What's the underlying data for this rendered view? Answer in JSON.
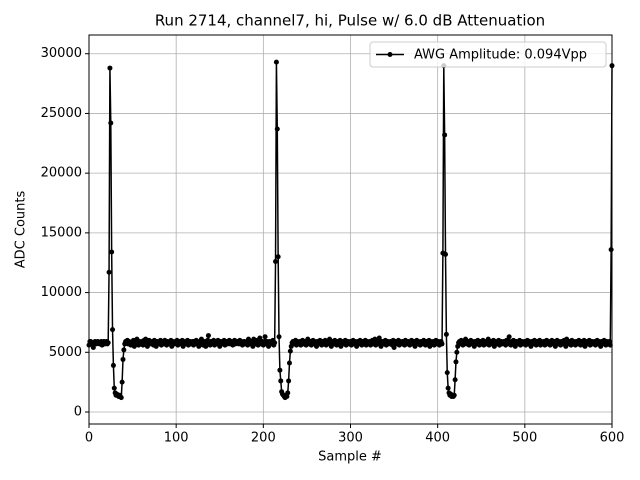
{
  "chart_data": {
    "type": "line",
    "title": "Run 2714, channel7, hi, Pulse w/ 6.0 dB Attenuation",
    "xlabel": "Sample #",
    "ylabel": "ADC Counts",
    "xlim": [
      0,
      600
    ],
    "ylim": [
      -1005,
      31569
    ],
    "xticks": [
      0,
      100,
      200,
      300,
      400,
      500,
      600
    ],
    "yticks": [
      0,
      5000,
      10000,
      15000,
      20000,
      25000,
      30000
    ],
    "grid": true,
    "legend": "upper right",
    "x": [
      0,
      1,
      2,
      3,
      4,
      5,
      6,
      7,
      8,
      9,
      10,
      11,
      12,
      13,
      14,
      15,
      16,
      17,
      18,
      19,
      20,
      21,
      22,
      23,
      24,
      25,
      26,
      27,
      28,
      29,
      30,
      31,
      32,
      33,
      34,
      35,
      36,
      37,
      38,
      39,
      40,
      41,
      42,
      43,
      44,
      45,
      46,
      47,
      48,
      49,
      50,
      51,
      52,
      53,
      54,
      55,
      56,
      57,
      58,
      59,
      60,
      61,
      62,
      63,
      64,
      65,
      66,
      67,
      68,
      69,
      70,
      71,
      72,
      73,
      74,
      75,
      76,
      77,
      78,
      79,
      80,
      81,
      82,
      83,
      84,
      85,
      86,
      87,
      88,
      89,
      90,
      91,
      92,
      93,
      94,
      95,
      96,
      97,
      98,
      99,
      100,
      101,
      102,
      103,
      104,
      105,
      106,
      107,
      108,
      109,
      110,
      111,
      112,
      113,
      114,
      115,
      116,
      117,
      118,
      119,
      120,
      121,
      122,
      123,
      124,
      125,
      126,
      127,
      128,
      129,
      130,
      131,
      132,
      133,
      134,
      135,
      136,
      137,
      138,
      139,
      140,
      141,
      142,
      143,
      144,
      145,
      146,
      147,
      148,
      149,
      150,
      151,
      152,
      153,
      154,
      155,
      156,
      157,
      158,
      159,
      160,
      161,
      162,
      163,
      164,
      165,
      166,
      167,
      168,
      169,
      170,
      171,
      172,
      173,
      174,
      175,
      176,
      177,
      178,
      179,
      180,
      181,
      182,
      183,
      184,
      185,
      186,
      187,
      188,
      189,
      190,
      191,
      192,
      193,
      194,
      195,
      196,
      197,
      198,
      199,
      200,
      201,
      202,
      203,
      204,
      205,
      206,
      207,
      208,
      209,
      210,
      211,
      212,
      213,
      214,
      215,
      216,
      217,
      218,
      219,
      220,
      221,
      222,
      223,
      224,
      225,
      226,
      227,
      228,
      229,
      230,
      231,
      232,
      233,
      234,
      235,
      236,
      237,
      238,
      239,
      240,
      241,
      242,
      243,
      244,
      245,
      246,
      247,
      248,
      249,
      250,
      251,
      252,
      253,
      254,
      255,
      256,
      257,
      258,
      259,
      260,
      261,
      262,
      263,
      264,
      265,
      266,
      267,
      268,
      269,
      270,
      271,
      272,
      273,
      274,
      275,
      276,
      277,
      278,
      279,
      280,
      281,
      282,
      283,
      284,
      285,
      286,
      287,
      288,
      289,
      290,
      291,
      292,
      293,
      294,
      295,
      296,
      297,
      298,
      299,
      300,
      301,
      302,
      303,
      304,
      305,
      306,
      307,
      308,
      309,
      310,
      311,
      312,
      313,
      314,
      315,
      316,
      317,
      318,
      319,
      320,
      321,
      322,
      323,
      324,
      325,
      326,
      327,
      328,
      329,
      330,
      331,
      332,
      333,
      334,
      335,
      336,
      337,
      338,
      339,
      340,
      341,
      342,
      343,
      344,
      345,
      346,
      347,
      348,
      349,
      350,
      351,
      352,
      353,
      354,
      355,
      356,
      357,
      358,
      359,
      360,
      361,
      362,
      363,
      364,
      365,
      366,
      367,
      368,
      369,
      370,
      371,
      372,
      373,
      374,
      375,
      376,
      377,
      378,
      379,
      380,
      381,
      382,
      383,
      384,
      385,
      386,
      387,
      388,
      389,
      390,
      391,
      392,
      393,
      394,
      395,
      396,
      397,
      398,
      399,
      400,
      401,
      402,
      403,
      404,
      405,
      406,
      407,
      408,
      409,
      410,
      411,
      412,
      413,
      414,
      415,
      416,
      417,
      418,
      419,
      420,
      421,
      422,
      423,
      424,
      425,
      426,
      427,
      428,
      429,
      430,
      431,
      432,
      433,
      434,
      435,
      436,
      437,
      438,
      439,
      440,
      441,
      442,
      443,
      444,
      445,
      446,
      447,
      448,
      449,
      450,
      451,
      452,
      453,
      454,
      455,
      456,
      457,
      458,
      459,
      460,
      461,
      462,
      463,
      464,
      465,
      466,
      467,
      468,
      469,
      470,
      471,
      472,
      473,
      474,
      475,
      476,
      477,
      478,
      479,
      480,
      481,
      482,
      483,
      484,
      485,
      486,
      487,
      488,
      489,
      490,
      491,
      492,
      493,
      494,
      495,
      496,
      497,
      498,
      499,
      500,
      501,
      502,
      503,
      504,
      505,
      506,
      507,
      508,
      509,
      510,
      511,
      512,
      513,
      514,
      515,
      516,
      517,
      518,
      519,
      520,
      521,
      522,
      523,
      524,
      525,
      526,
      527,
      528,
      529,
      530,
      531,
      532,
      533,
      534,
      535,
      536,
      537,
      538,
      539,
      540,
      541,
      542,
      543,
      544,
      545,
      546,
      547,
      548,
      549,
      550,
      551,
      552,
      553,
      554,
      555,
      556,
      557,
      558,
      559,
      560,
      561,
      562,
      563,
      564,
      565,
      566,
      567,
      568,
      569,
      570,
      571,
      572,
      573,
      574,
      575,
      576,
      577,
      578,
      579,
      580,
      581,
      582,
      583,
      584,
      585,
      586,
      587,
      588,
      589,
      590,
      591,
      592,
      593,
      594,
      595,
      596,
      597,
      598,
      599,
      600
    ],
    "series": [
      {
        "name": "AWG Amplitude: 0.094Vpp",
        "color": "#000000",
        "values": [
          5600,
          5900,
          5900,
          5800,
          5700,
          5400,
          5800,
          5900,
          5700,
          5800,
          5900,
          5800,
          5700,
          5800,
          5900,
          5600,
          5800,
          5900,
          5700,
          5800,
          5900,
          5700,
          5800,
          11700,
          28800,
          24200,
          13400,
          6900,
          3900,
          2000,
          1600,
          1400,
          1500,
          1400,
          1300,
          1400,
          1300,
          1200,
          2500,
          4400,
          5200,
          5700,
          5900,
          5800,
          6000,
          5700,
          5900,
          5800,
          5600,
          5800,
          5900,
          6000,
          5500,
          5800,
          5700,
          6100,
          5800,
          5600,
          5900,
          5700,
          5800,
          5900,
          5600,
          6000,
          5700,
          6100,
          5800,
          5500,
          5800,
          6000,
          5900,
          5700,
          5800,
          5900,
          5600,
          6000,
          5800,
          5500,
          5900,
          5800,
          5700,
          5900,
          6000,
          5600,
          5800,
          5900,
          5700,
          6000,
          5800,
          5600,
          5900,
          5800,
          5700,
          5800,
          6000,
          5500,
          5900,
          5800,
          5700,
          5900,
          5800,
          6000,
          5600,
          5800,
          5900,
          5700,
          5800,
          6000,
          5500,
          5900,
          5800,
          5700,
          5900,
          6000,
          5600,
          5800,
          5900,
          5700,
          5800,
          5900,
          5600,
          5900,
          5800,
          6000,
          5700,
          5800,
          5500,
          5900,
          5700,
          6100,
          5800,
          5600,
          5900,
          5700,
          5500,
          5800,
          6000,
          6400,
          5800,
          5600,
          5900,
          5700,
          5800,
          6000,
          5600,
          5800,
          5900,
          5700,
          6000,
          5800,
          5500,
          5900,
          5800,
          5700,
          5900,
          6000,
          5600,
          5800,
          5900,
          5700,
          5800,
          6000,
          5700,
          5900,
          5800,
          5600,
          5900,
          6000,
          5700,
          5800,
          5900,
          5800,
          5700,
          6000,
          5800,
          5900,
          5600,
          5800,
          5900,
          5700,
          5800,
          5900,
          5600,
          6100,
          5800,
          5700,
          5900,
          5800,
          5500,
          6100,
          5800,
          5700,
          5900,
          6000,
          5600,
          5800,
          6200,
          5700,
          5800,
          5900,
          5600,
          5800,
          6300,
          5700,
          5900,
          5800,
          5500,
          5900,
          5800,
          5700,
          5900,
          6000,
          5600,
          5800,
          12600,
          29300,
          23700,
          13000,
          6300,
          3500,
          2600,
          1700,
          1500,
          1400,
          1300,
          1200,
          1400,
          1300,
          1600,
          2600,
          4100,
          5100,
          5500,
          5800,
          5900,
          5700,
          5800,
          6000,
          5600,
          5900,
          5800,
          5700,
          5900,
          5600,
          5800,
          6000,
          5700,
          5900,
          5800,
          5600,
          5900,
          6100,
          5700,
          5800,
          5900,
          5600,
          5800,
          6000,
          5700,
          5900,
          5800,
          5500,
          5900,
          5800,
          5700,
          6000,
          5800,
          5600,
          5900,
          5700,
          5800,
          6000,
          5600,
          5900,
          5800,
          5700,
          6100,
          5800,
          5500,
          5900,
          5800,
          5700,
          6000,
          5800,
          5600,
          5900,
          5700,
          5800,
          6000,
          5500,
          5900,
          5800,
          5700,
          5900,
          6000,
          5600,
          5800,
          5900,
          5700,
          5800,
          5900,
          5600,
          5800,
          6000,
          5700,
          5900,
          5800,
          5500,
          5900,
          5800,
          5700,
          6000,
          5800,
          5600,
          5900,
          5700,
          5800,
          6000,
          5600,
          5900,
          5800,
          5700,
          5900,
          5600,
          5800,
          6000,
          5700,
          5900,
          6100,
          5600,
          5900,
          5800,
          5700,
          6200,
          5800,
          5500,
          5900,
          5800,
          5700,
          5900,
          6000,
          5600,
          5800,
          5900,
          5700,
          5800,
          5900,
          5800,
          5600,
          6000,
          5400,
          5800,
          5900,
          5700,
          5800,
          6000,
          5600,
          5900,
          5800,
          5700,
          5900,
          5800,
          5600,
          6000,
          5800,
          5700,
          5900,
          5800,
          5600,
          5900,
          6000,
          5700,
          5800,
          5900,
          5500,
          5800,
          6000,
          5700,
          5900,
          5800,
          5600,
          5900,
          5800,
          5700,
          6000,
          5800,
          5600,
          5900,
          5700,
          5800,
          6000,
          5500,
          5900,
          5800,
          5700,
          5900,
          5600,
          5800,
          6000,
          5700,
          5800,
          5900,
          5600,
          5800,
          5900,
          5700,
          13300,
          29000,
          23200,
          13200,
          6500,
          3300,
          2000,
          1600,
          1400,
          1500,
          1300,
          1400,
          1300,
          1400,
          2700,
          4200,
          5000,
          5500,
          5800,
          5900,
          5700,
          6000,
          5800,
          5600,
          5900,
          5800,
          6100,
          5700,
          5800,
          5900,
          5600,
          5800,
          6000,
          5700,
          5900,
          5800,
          5500,
          5900,
          5800,
          5700,
          6000,
          5800,
          5600,
          5900,
          5700,
          5800,
          6000,
          5600,
          5900,
          5800,
          5700,
          5900,
          6100,
          5600,
          5800,
          5900,
          5700,
          5800,
          6000,
          5500,
          5900,
          5800,
          5700,
          5900,
          6000,
          5600,
          5800,
          5900,
          5700,
          5800,
          5900,
          5800,
          5600,
          6000,
          5800,
          5700,
          6300,
          5800,
          5600,
          5900,
          5700,
          6000,
          5800,
          5500,
          5900,
          5800,
          5700,
          5900,
          6000,
          5600,
          5800,
          5900,
          5700,
          5800,
          5900,
          5600,
          5800,
          6000,
          5700,
          5900,
          5800,
          5500,
          5900,
          5800,
          5700,
          6000,
          5800,
          5600,
          5900,
          5700,
          5800,
          6000,
          5600,
          5900,
          5800,
          5700,
          5900,
          5600,
          5800,
          6000,
          5700,
          5900,
          5800,
          5600,
          5900,
          6000,
          5700,
          5800,
          5900,
          5500,
          5800,
          6000,
          5700,
          5900,
          5800,
          5600,
          5900,
          5800,
          5700,
          6000,
          5800,
          5500,
          6100,
          5800,
          5700,
          5900,
          5800,
          5600,
          6000,
          5700,
          5900,
          5800,
          5600,
          5900,
          5800,
          5700,
          6000,
          5800,
          5600,
          5900,
          5700,
          5800,
          6000,
          5500,
          5900,
          5800,
          5700,
          5900,
          6000,
          5600,
          5800,
          5900,
          5700,
          5800,
          5900,
          5600,
          5800,
          6000,
          5700,
          5900,
          5800,
          5500,
          5900,
          5800,
          5700,
          6000,
          5800,
          5600,
          5900,
          5700,
          5800,
          5900,
          5600,
          13600,
          29000
        ]
      }
    ]
  }
}
